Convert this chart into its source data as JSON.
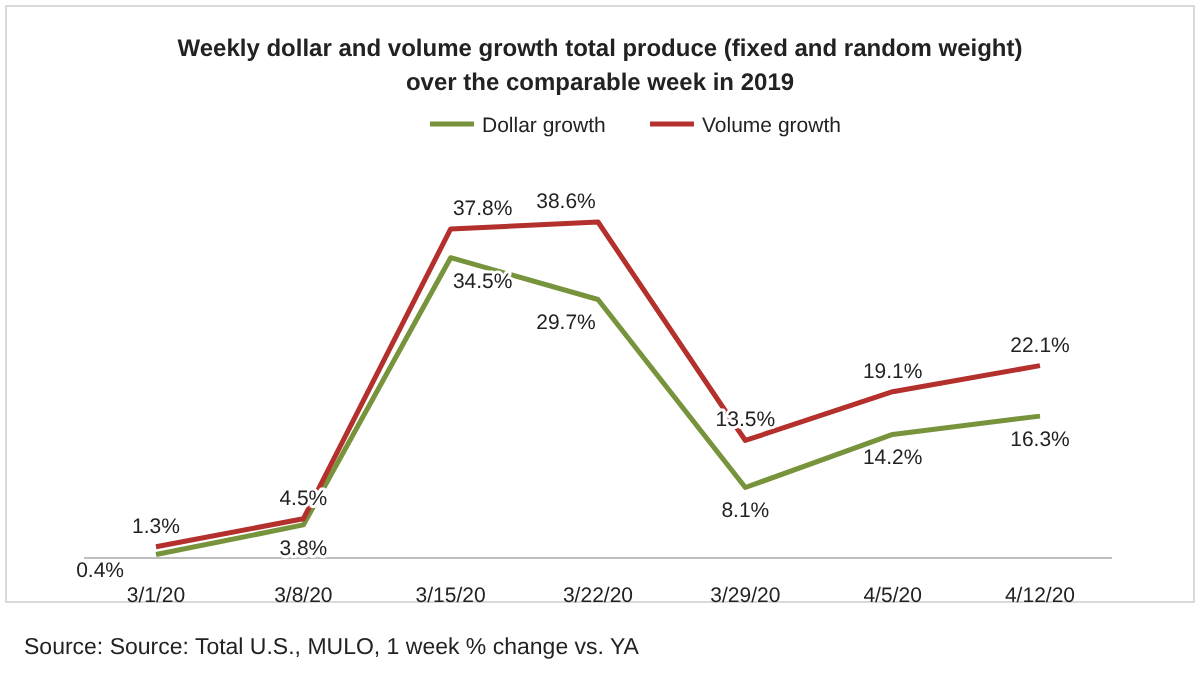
{
  "chart_data": {
    "type": "line",
    "title": "Weekly dollar and volume growth  total produce (fixed and random weight)\nover the comparable week in 2019",
    "categories": [
      "3/1/20",
      "3/8/20",
      "3/15/20",
      "3/22/20",
      "3/29/20",
      "4/5/20",
      "4/12/20"
    ],
    "series": [
      {
        "name": "Dollar growth",
        "color": "#77933c",
        "values": [
          0.4,
          3.8,
          34.5,
          29.7,
          8.1,
          14.2,
          16.3
        ],
        "value_labels": [
          "0.4%",
          "3.8%",
          "34.5%",
          "29.7%",
          "8.1%",
          "14.2%",
          "16.3%"
        ]
      },
      {
        "name": "Volume growth",
        "color": "#b3302d",
        "values": [
          1.3,
          4.5,
          37.8,
          38.6,
          13.5,
          19.1,
          22.1
        ],
        "value_labels": [
          "1.3%",
          "4.5%",
          "37.8%",
          "38.6%",
          "13.5%",
          "19.1%",
          "22.1%"
        ]
      }
    ],
    "legend": "top",
    "annotations": [
      "Source: Source: Total U.S., MULO, 1 week % change vs. YA"
    ]
  }
}
